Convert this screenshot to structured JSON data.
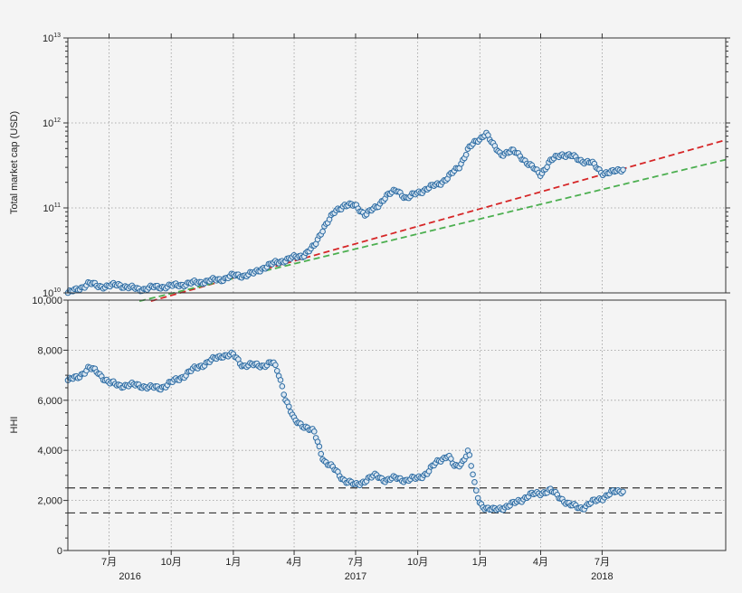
{
  "chart_data": [
    {
      "type": "scatter",
      "ylabel": "Total market cap (USD)",
      "yscale": "log",
      "ylim": [
        10000000000.0,
        10000000000000.0
      ],
      "yticks": [
        {
          "value": 10000000000.0,
          "base": "10",
          "exp": "10"
        },
        {
          "value": 100000000000.0,
          "base": "10",
          "exp": "11"
        },
        {
          "value": 1000000000000.0,
          "base": "10",
          "exp": "12"
        },
        {
          "value": 10000000000000.0,
          "base": "10",
          "exp": "13"
        }
      ],
      "grid": true,
      "series": [
        {
          "color": "#2e6da4",
          "marker": "hollow-circle",
          "x": [
            "2016-05-01",
            "2016-05-10",
            "2016-05-20",
            "2016-06-01",
            "2016-06-15",
            "2016-07-01",
            "2016-07-15",
            "2016-08-01",
            "2016-08-15",
            "2016-09-01",
            "2016-09-15",
            "2016-10-01",
            "2016-10-15",
            "2016-11-01",
            "2016-11-15",
            "2016-12-01",
            "2016-12-15",
            "2017-01-01",
            "2017-01-15",
            "2017-02-01",
            "2017-02-15",
            "2017-03-01",
            "2017-03-15",
            "2017-04-01",
            "2017-04-15",
            "2017-05-01",
            "2017-05-15",
            "2017-06-01",
            "2017-06-15",
            "2017-07-01",
            "2017-07-15",
            "2017-08-01",
            "2017-08-15",
            "2017-09-01",
            "2017-09-15",
            "2017-10-01",
            "2017-10-15",
            "2017-11-01",
            "2017-11-15",
            "2017-12-01",
            "2017-12-15",
            "2018-01-01",
            "2018-01-10",
            "2018-01-20",
            "2018-02-01",
            "2018-02-10",
            "2018-02-20",
            "2018-03-01",
            "2018-03-15",
            "2018-04-01",
            "2018-04-15",
            "2018-05-01",
            "2018-05-15",
            "2018-06-01",
            "2018-06-15",
            "2018-07-01",
            "2018-07-15",
            "2018-08-01"
          ],
          "y": [
            10000000000.0,
            10500000000.0,
            11500000000.0,
            13000000000.0,
            12000000000.0,
            12000000000.0,
            12500000000.0,
            11500000000.0,
            11000000000.0,
            11500000000.0,
            11800000000.0,
            12000000000.0,
            12500000000.0,
            13000000000.0,
            13500000000.0,
            14000000000.0,
            14500000000.0,
            16000000000.0,
            16000000000.0,
            17000000000.0,
            20000000000.0,
            22000000000.0,
            24000000000.0,
            26000000000.0,
            28000000000.0,
            35000000000.0,
            60000000000.0,
            90000000000.0,
            110000000000.0,
            105000000000.0,
            85000000000.0,
            100000000000.0,
            140000000000.0,
            160000000000.0,
            130000000000.0,
            150000000000.0,
            170000000000.0,
            190000000000.0,
            230000000000.0,
            300000000000.0,
            500000000000.0,
            650000000000.0,
            780000000000.0,
            550000000000.0,
            430000000000.0,
            450000000000.0,
            460000000000.0,
            420000000000.0,
            320000000000.0,
            250000000000.0,
            350000000000.0,
            430000000000.0,
            410000000000.0,
            360000000000.0,
            340000000000.0,
            260000000000.0,
            260000000000.0,
            290000000000.0
          ]
        },
        {
          "color": "#d62728",
          "style": "dashed",
          "x": [
            "2016-09-01",
            "2018-12-31"
          ],
          "y": [
            8000000000.0,
            630000000000.0
          ]
        },
        {
          "color": "#4caf50",
          "style": "dashed",
          "x": [
            "2016-08-15",
            "2018-12-31"
          ],
          "y": [
            8000000000.0,
            370000000000.0
          ]
        }
      ]
    },
    {
      "type": "scatter",
      "ylabel": "HHI",
      "ylim": [
        0,
        10000
      ],
      "ytick_labels": [
        "0",
        "2,000",
        "4,000",
        "6,000",
        "8,000",
        "10,000"
      ],
      "ytick_values": [
        0,
        2000,
        4000,
        6000,
        8000,
        10000
      ],
      "grid": true,
      "hlines": [
        1500,
        2500
      ],
      "xtick_labels": [
        "7月",
        "10月",
        "1月",
        "4月",
        "7月",
        "10月",
        "1月",
        "4月",
        "7月"
      ],
      "xtick_values": [
        "2016-07-01",
        "2016-10-01",
        "2017-01-01",
        "2017-04-01",
        "2017-07-01",
        "2017-10-01",
        "2018-01-01",
        "2018-04-01",
        "2018-07-01"
      ],
      "year_labels": [
        {
          "label": "2016",
          "x": "2016-08-01"
        },
        {
          "label": "2017",
          "x": "2017-07-01"
        },
        {
          "label": "2018",
          "x": "2018-07-01"
        }
      ],
      "series": [
        {
          "color": "#2e6da4",
          "marker": "hollow-circle",
          "x": [
            "2016-05-01",
            "2016-05-15",
            "2016-06-01",
            "2016-06-15",
            "2016-07-01",
            "2016-07-15",
            "2016-08-01",
            "2016-08-15",
            "2016-09-01",
            "2016-09-15",
            "2016-10-01",
            "2016-10-15",
            "2016-11-01",
            "2016-11-15",
            "2016-12-01",
            "2016-12-15",
            "2017-01-01",
            "2017-01-15",
            "2017-02-01",
            "2017-02-15",
            "2017-03-01",
            "2017-03-10",
            "2017-03-20",
            "2017-04-01",
            "2017-04-15",
            "2017-05-01",
            "2017-05-15",
            "2017-06-01",
            "2017-06-15",
            "2017-07-01",
            "2017-07-15",
            "2017-08-01",
            "2017-08-15",
            "2017-09-01",
            "2017-09-15",
            "2017-10-01",
            "2017-10-15",
            "2017-11-01",
            "2017-11-15",
            "2017-11-25",
            "2017-12-05",
            "2017-12-15",
            "2017-12-25",
            "2018-01-01",
            "2018-01-10",
            "2018-01-20",
            "2018-02-01",
            "2018-02-15",
            "2018-03-01",
            "2018-03-15",
            "2018-04-01",
            "2018-04-15",
            "2018-05-01",
            "2018-05-15",
            "2018-06-01",
            "2018-06-15",
            "2018-07-01",
            "2018-07-15",
            "2018-08-01"
          ],
          "y": [
            6800,
            6900,
            7300,
            7100,
            6700,
            6600,
            6600,
            6600,
            6500,
            6500,
            6700,
            6900,
            7200,
            7400,
            7600,
            7800,
            7800,
            7400,
            7400,
            7400,
            7500,
            7000,
            6000,
            5200,
            5000,
            4700,
            3600,
            3200,
            2800,
            2600,
            2800,
            3000,
            2800,
            2900,
            2800,
            2900,
            3100,
            3600,
            3800,
            3300,
            3500,
            4000,
            2500,
            1900,
            1700,
            1600,
            1700,
            1800,
            2000,
            2200,
            2300,
            2400,
            2100,
            1800,
            1700,
            1900,
            2100,
            2300,
            2400
          ]
        }
      ]
    }
  ]
}
